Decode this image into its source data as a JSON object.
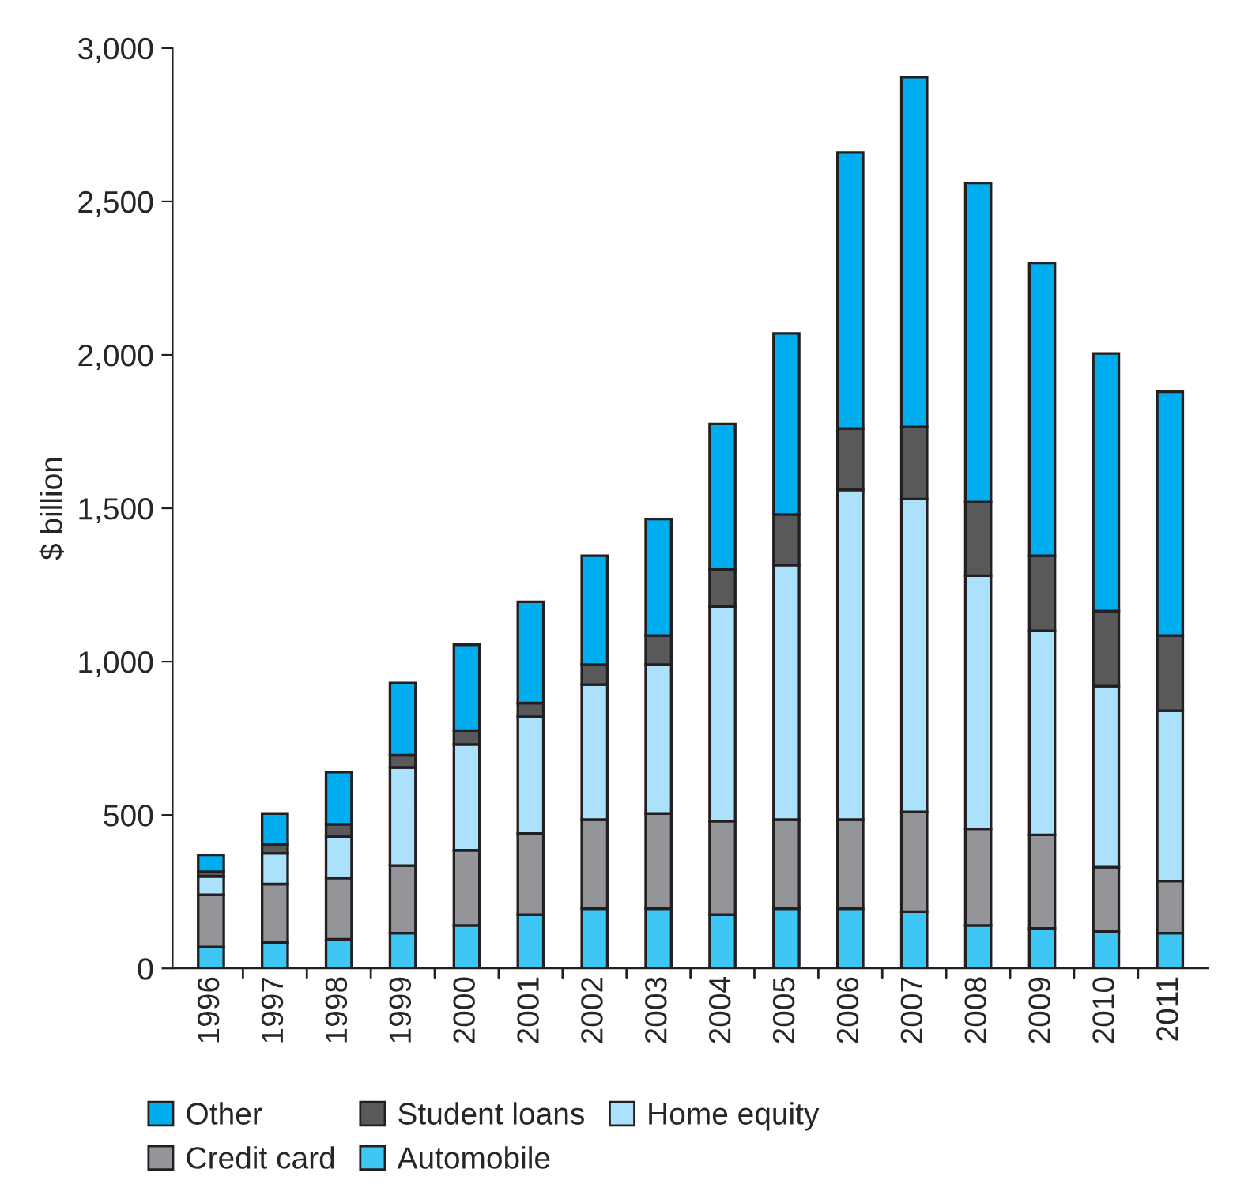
{
  "chart_data": {
    "type": "bar",
    "stacked": true,
    "ylabel": "$ billion",
    "categories": [
      "1996",
      "1997",
      "1998",
      "1999",
      "2000",
      "2001",
      "2002",
      "2003",
      "2004",
      "2005",
      "2006",
      "2007",
      "2008",
      "2009",
      "2010",
      "2011"
    ],
    "series": [
      {
        "name": "Automobile",
        "color": "#3ec7f4",
        "values": [
          70,
          85,
          95,
          115,
          140,
          175,
          195,
          195,
          175,
          195,
          195,
          185,
          140,
          130,
          120,
          115
        ]
      },
      {
        "name": "Credit card",
        "color": "#939598",
        "values": [
          170,
          190,
          200,
          220,
          245,
          265,
          290,
          310,
          305,
          290,
          290,
          325,
          315,
          305,
          210,
          170
        ]
      },
      {
        "name": "Home equity",
        "color": "#abe1fa",
        "values": [
          60,
          100,
          135,
          320,
          345,
          380,
          440,
          485,
          700,
          830,
          1075,
          1020,
          825,
          665,
          590,
          555
        ]
      },
      {
        "name": "Student loans",
        "color": "#58595b",
        "values": [
          15,
          30,
          40,
          40,
          45,
          45,
          65,
          95,
          120,
          165,
          200,
          235,
          240,
          245,
          245,
          245
        ]
      },
      {
        "name": "Other",
        "color": "#00aeef",
        "values": [
          55,
          100,
          170,
          235,
          280,
          330,
          355,
          380,
          475,
          590,
          900,
          1140,
          1040,
          955,
          840,
          795
        ]
      }
    ],
    "ylim": [
      0,
      3000
    ],
    "yticks": [
      0,
      {
        "value": 500,
        "label": "500"
      },
      {
        "value": 1000,
        "label": "1,000"
      },
      {
        "value": 1500,
        "label": "1,500"
      },
      {
        "value": 2000,
        "label": "2,000"
      },
      {
        "value": 2500,
        "label": "2,500"
      },
      {
        "value": 3000,
        "label": "3,000"
      }
    ],
    "grid": false,
    "legend": "bottom"
  }
}
